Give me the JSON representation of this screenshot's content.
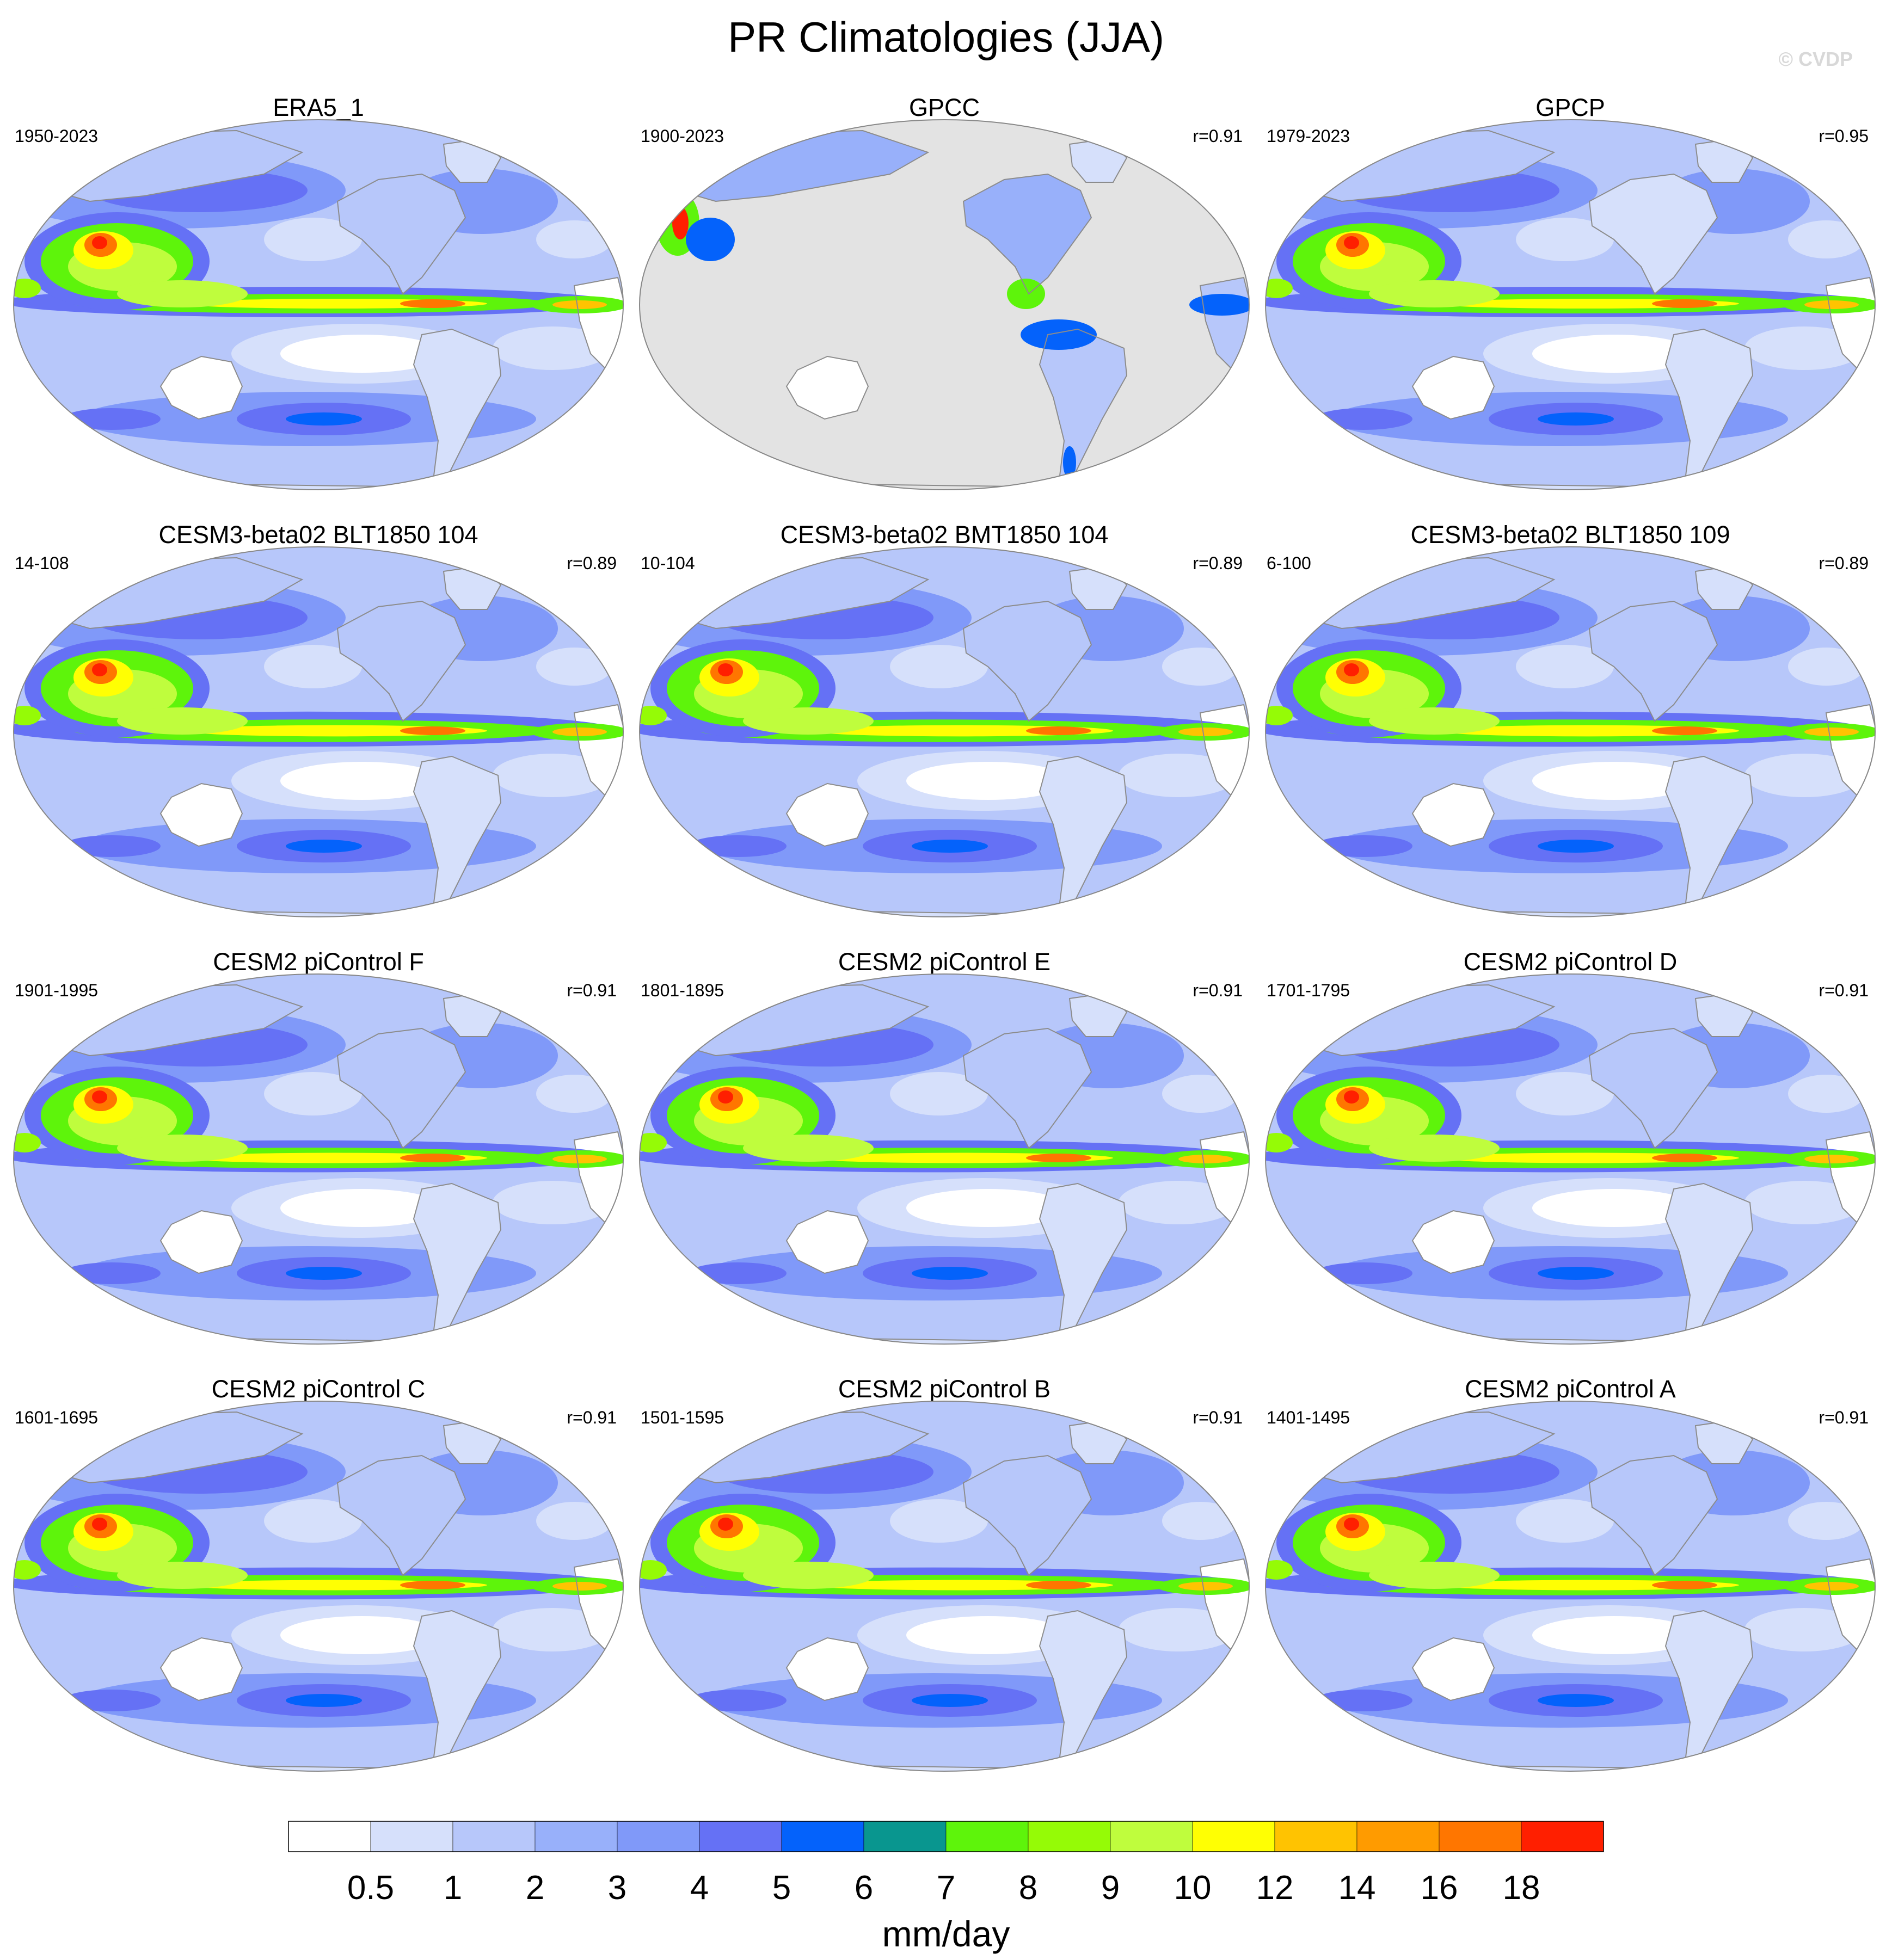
{
  "figure": {
    "title": "PR Climatologies (JJA)",
    "watermark": "© CVDP"
  },
  "panels": [
    {
      "title": "ERA5_1",
      "period": "1950-2023",
      "r": "",
      "type": "reanalysis"
    },
    {
      "title": "GPCC",
      "period": "1900-2023",
      "r": "r=0.91",
      "type": "land"
    },
    {
      "title": "GPCP",
      "period": "1979-2023",
      "r": "r=0.95",
      "type": "obs"
    },
    {
      "title": "CESM3-beta02 BLT1850 104",
      "period": "14-108",
      "r": "r=0.89",
      "type": "cesm3"
    },
    {
      "title": "CESM3-beta02 BMT1850 104",
      "period": "10-104",
      "r": "r=0.89",
      "type": "cesm3"
    },
    {
      "title": "CESM3-beta02 BLT1850 109",
      "period": "6-100",
      "r": "r=0.89",
      "type": "cesm3"
    },
    {
      "title": "CESM2 piControl F",
      "period": "1901-1995",
      "r": "r=0.91",
      "type": "cesm2"
    },
    {
      "title": "CESM2 piControl E",
      "period": "1801-1895",
      "r": "r=0.91",
      "type": "cesm2"
    },
    {
      "title": "CESM2 piControl D",
      "period": "1701-1795",
      "r": "r=0.91",
      "type": "cesm2"
    },
    {
      "title": "CESM2 piControl C",
      "period": "1601-1695",
      "r": "r=0.91",
      "type": "cesm2"
    },
    {
      "title": "CESM2 piControl B",
      "period": "1501-1595",
      "r": "r=0.91",
      "type": "cesm2"
    },
    {
      "title": "CESM2 piControl A",
      "period": "1401-1495",
      "r": "r=0.91",
      "type": "cesm2"
    }
  ],
  "colorbar": {
    "units": "mm/day",
    "labels": [
      "0.5",
      "1",
      "2",
      "3",
      "4",
      "5",
      "6",
      "7",
      "8",
      "9",
      "10",
      "12",
      "14",
      "16",
      "18"
    ],
    "colors": [
      "#ffffff",
      "#d6e0fb",
      "#b7c7fa",
      "#98b0fa",
      "#8099f9",
      "#6571f5",
      "#0462fb",
      "#09968f",
      "#5ef40b",
      "#95fb06",
      "#bffd3d",
      "#ffff03",
      "#ffc301",
      "#ff9b00",
      "#ff7600",
      "#ff1f00"
    ]
  },
  "map_colors": {
    "ocean_base": "#b7c7fa",
    "land_dry": "#ffffff",
    "gpcc_missing": "#e3e3e3",
    "coastline": "#8c8c8c"
  }
}
